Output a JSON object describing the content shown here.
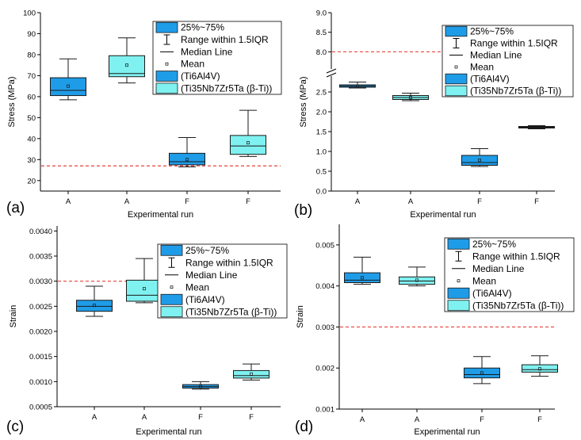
{
  "colors": {
    "ti6al4v_fill": "#1f9ce8",
    "tinbzrta_fill": "#7ff1f0",
    "box_stroke": "#1a1a1a",
    "reference_line": "#e8413a"
  },
  "legend": {
    "box_range": "25%~75%",
    "whisker_range": "Range within 1.5IQR",
    "median": "Median Line",
    "mean": "Mean",
    "series_a": "(Ti6Al4V)",
    "series_b": "(Ti35Nb7Zr5Ta (β-Ti))"
  },
  "chart_data": [
    {
      "type": "box",
      "panel_label": "(a)",
      "xlabel": "Experimental run",
      "ylabel": "Stress (MPa)",
      "categories": [
        "A",
        "A",
        "F",
        "F"
      ],
      "ylim": [
        15,
        100
      ],
      "yticks": [
        20,
        30,
        40,
        50,
        60,
        70,
        80,
        90,
        100
      ],
      "ytick_labels": [
        "20",
        "30",
        "40",
        "50",
        "60",
        "70",
        "80",
        "90",
        "100"
      ],
      "reference_line": 27,
      "axis_break": null,
      "boxes": [
        {
          "series": "Ti6Al4V",
          "whisker_low": 58.5,
          "q1": 60.5,
          "median": 63,
          "q3": 69,
          "whisker_high": 78,
          "mean": 65
        },
        {
          "series": "Ti35Nb7Zr5Ta",
          "whisker_low": 66.5,
          "q1": 69.5,
          "median": 71,
          "q3": 79.5,
          "whisker_high": 88,
          "mean": 75
        },
        {
          "series": "Ti6Al4V",
          "whisker_low": 26.5,
          "q1": 27.5,
          "median": 29,
          "q3": 33,
          "whisker_high": 40.5,
          "mean": 30
        },
        {
          "series": "Ti35Nb7Zr5Ta",
          "whisker_low": 31.5,
          "q1": 32.5,
          "median": 36.5,
          "q3": 41.5,
          "whisker_high": 53.5,
          "mean": 38
        }
      ]
    },
    {
      "type": "box",
      "panel_label": "(b)",
      "xlabel": "Experimental run",
      "ylabel": "Stress (MPa)",
      "categories": [
        "A",
        "A",
        "F",
        "F"
      ],
      "ylim": [
        0,
        9
      ],
      "yticks": [
        0,
        0.5,
        1,
        1.5,
        2,
        2.5,
        8,
        8.5,
        9
      ],
      "ytick_labels": [
        "0.0",
        "0.5",
        "1.0",
        "1.5",
        "2.0",
        "2.5",
        "8.0",
        "8.5",
        "9.0"
      ],
      "reference_line": 8,
      "axis_break": {
        "lower_max": 2.9,
        "upper_min": 7.5
      },
      "boxes": [
        {
          "series": "Ti6Al4V",
          "whisker_low": 2.6,
          "q1": 2.62,
          "median": 2.65,
          "q3": 2.68,
          "whisker_high": 2.75,
          "mean": 2.65
        },
        {
          "series": "Ti35Nb7Zr5Ta",
          "whisker_low": 2.28,
          "q1": 2.31,
          "median": 2.36,
          "q3": 2.41,
          "whisker_high": 2.47,
          "mean": 2.36
        },
        {
          "series": "Ti6Al4V",
          "whisker_low": 0.62,
          "q1": 0.65,
          "median": 0.72,
          "q3": 0.9,
          "whisker_high": 1.07,
          "mean": 0.78
        },
        {
          "series": "Ti35Nb7Zr5Ta",
          "whisker_low": 1.57,
          "q1": 1.59,
          "median": 1.61,
          "q3": 1.63,
          "whisker_high": 1.65,
          "mean": 1.61
        }
      ]
    },
    {
      "type": "box",
      "panel_label": "(c)",
      "xlabel": "Experimental run",
      "ylabel": "Strain",
      "categories": [
        "A",
        "A",
        "F",
        "F"
      ],
      "ylim": [
        0.0005,
        0.0041
      ],
      "yticks": [
        0.0005,
        0.001,
        0.0015,
        0.002,
        0.0025,
        0.003,
        0.0035,
        0.004
      ],
      "ytick_labels": [
        "0.0005",
        "0.0010",
        "0.0015",
        "0.0020",
        "0.0025",
        "0.0030",
        "0.0035",
        "0.0040"
      ],
      "reference_line": 0.003,
      "axis_break": null,
      "boxes": [
        {
          "series": "Ti6Al4V",
          "whisker_low": 0.0023,
          "q1": 0.0024,
          "median": 0.0025,
          "q3": 0.00262,
          "whisker_high": 0.0029,
          "mean": 0.00252
        },
        {
          "series": "Ti35Nb7Zr5Ta",
          "whisker_low": 0.00257,
          "q1": 0.0026,
          "median": 0.00272,
          "q3": 0.00302,
          "whisker_high": 0.00345,
          "mean": 0.00285
        },
        {
          "series": "Ti6Al4V",
          "whisker_low": 0.00085,
          "q1": 0.00087,
          "median": 0.0009,
          "q3": 0.00094,
          "whisker_high": 0.001,
          "mean": 0.0009
        },
        {
          "series": "Ti35Nb7Zr5Ta",
          "whisker_low": 0.00103,
          "q1": 0.00107,
          "median": 0.00112,
          "q3": 0.00122,
          "whisker_high": 0.00135,
          "mean": 0.00115
        }
      ]
    },
    {
      "type": "box",
      "panel_label": "(d)",
      "xlabel": "Experimental run",
      "ylabel": "Strain",
      "categories": [
        "A",
        "A",
        "F",
        "F"
      ],
      "ylim": [
        0.001,
        0.0055
      ],
      "yticks": [
        0.001,
        0.002,
        0.003,
        0.004,
        0.005
      ],
      "ytick_labels": [
        "0.001",
        "0.002",
        "0.003",
        "0.004",
        "0.005"
      ],
      "reference_line": 0.003,
      "axis_break": null,
      "boxes": [
        {
          "series": "Ti6Al4V",
          "whisker_low": 0.00404,
          "q1": 0.00408,
          "median": 0.00414,
          "q3": 0.00432,
          "whisker_high": 0.0047,
          "mean": 0.0042
        },
        {
          "series": "Ti35Nb7Zr5Ta",
          "whisker_low": 0.004,
          "q1": 0.00404,
          "median": 0.00412,
          "q3": 0.00422,
          "whisker_high": 0.00446,
          "mean": 0.00414
        },
        {
          "series": "Ti6Al4V",
          "whisker_low": 0.00162,
          "q1": 0.00176,
          "median": 0.00184,
          "q3": 0.002,
          "whisker_high": 0.00228,
          "mean": 0.00188
        },
        {
          "series": "Ti35Nb7Zr5Ta",
          "whisker_low": 0.0018,
          "q1": 0.0019,
          "median": 0.00196,
          "q3": 0.00208,
          "whisker_high": 0.0023,
          "mean": 0.00198
        }
      ]
    }
  ]
}
